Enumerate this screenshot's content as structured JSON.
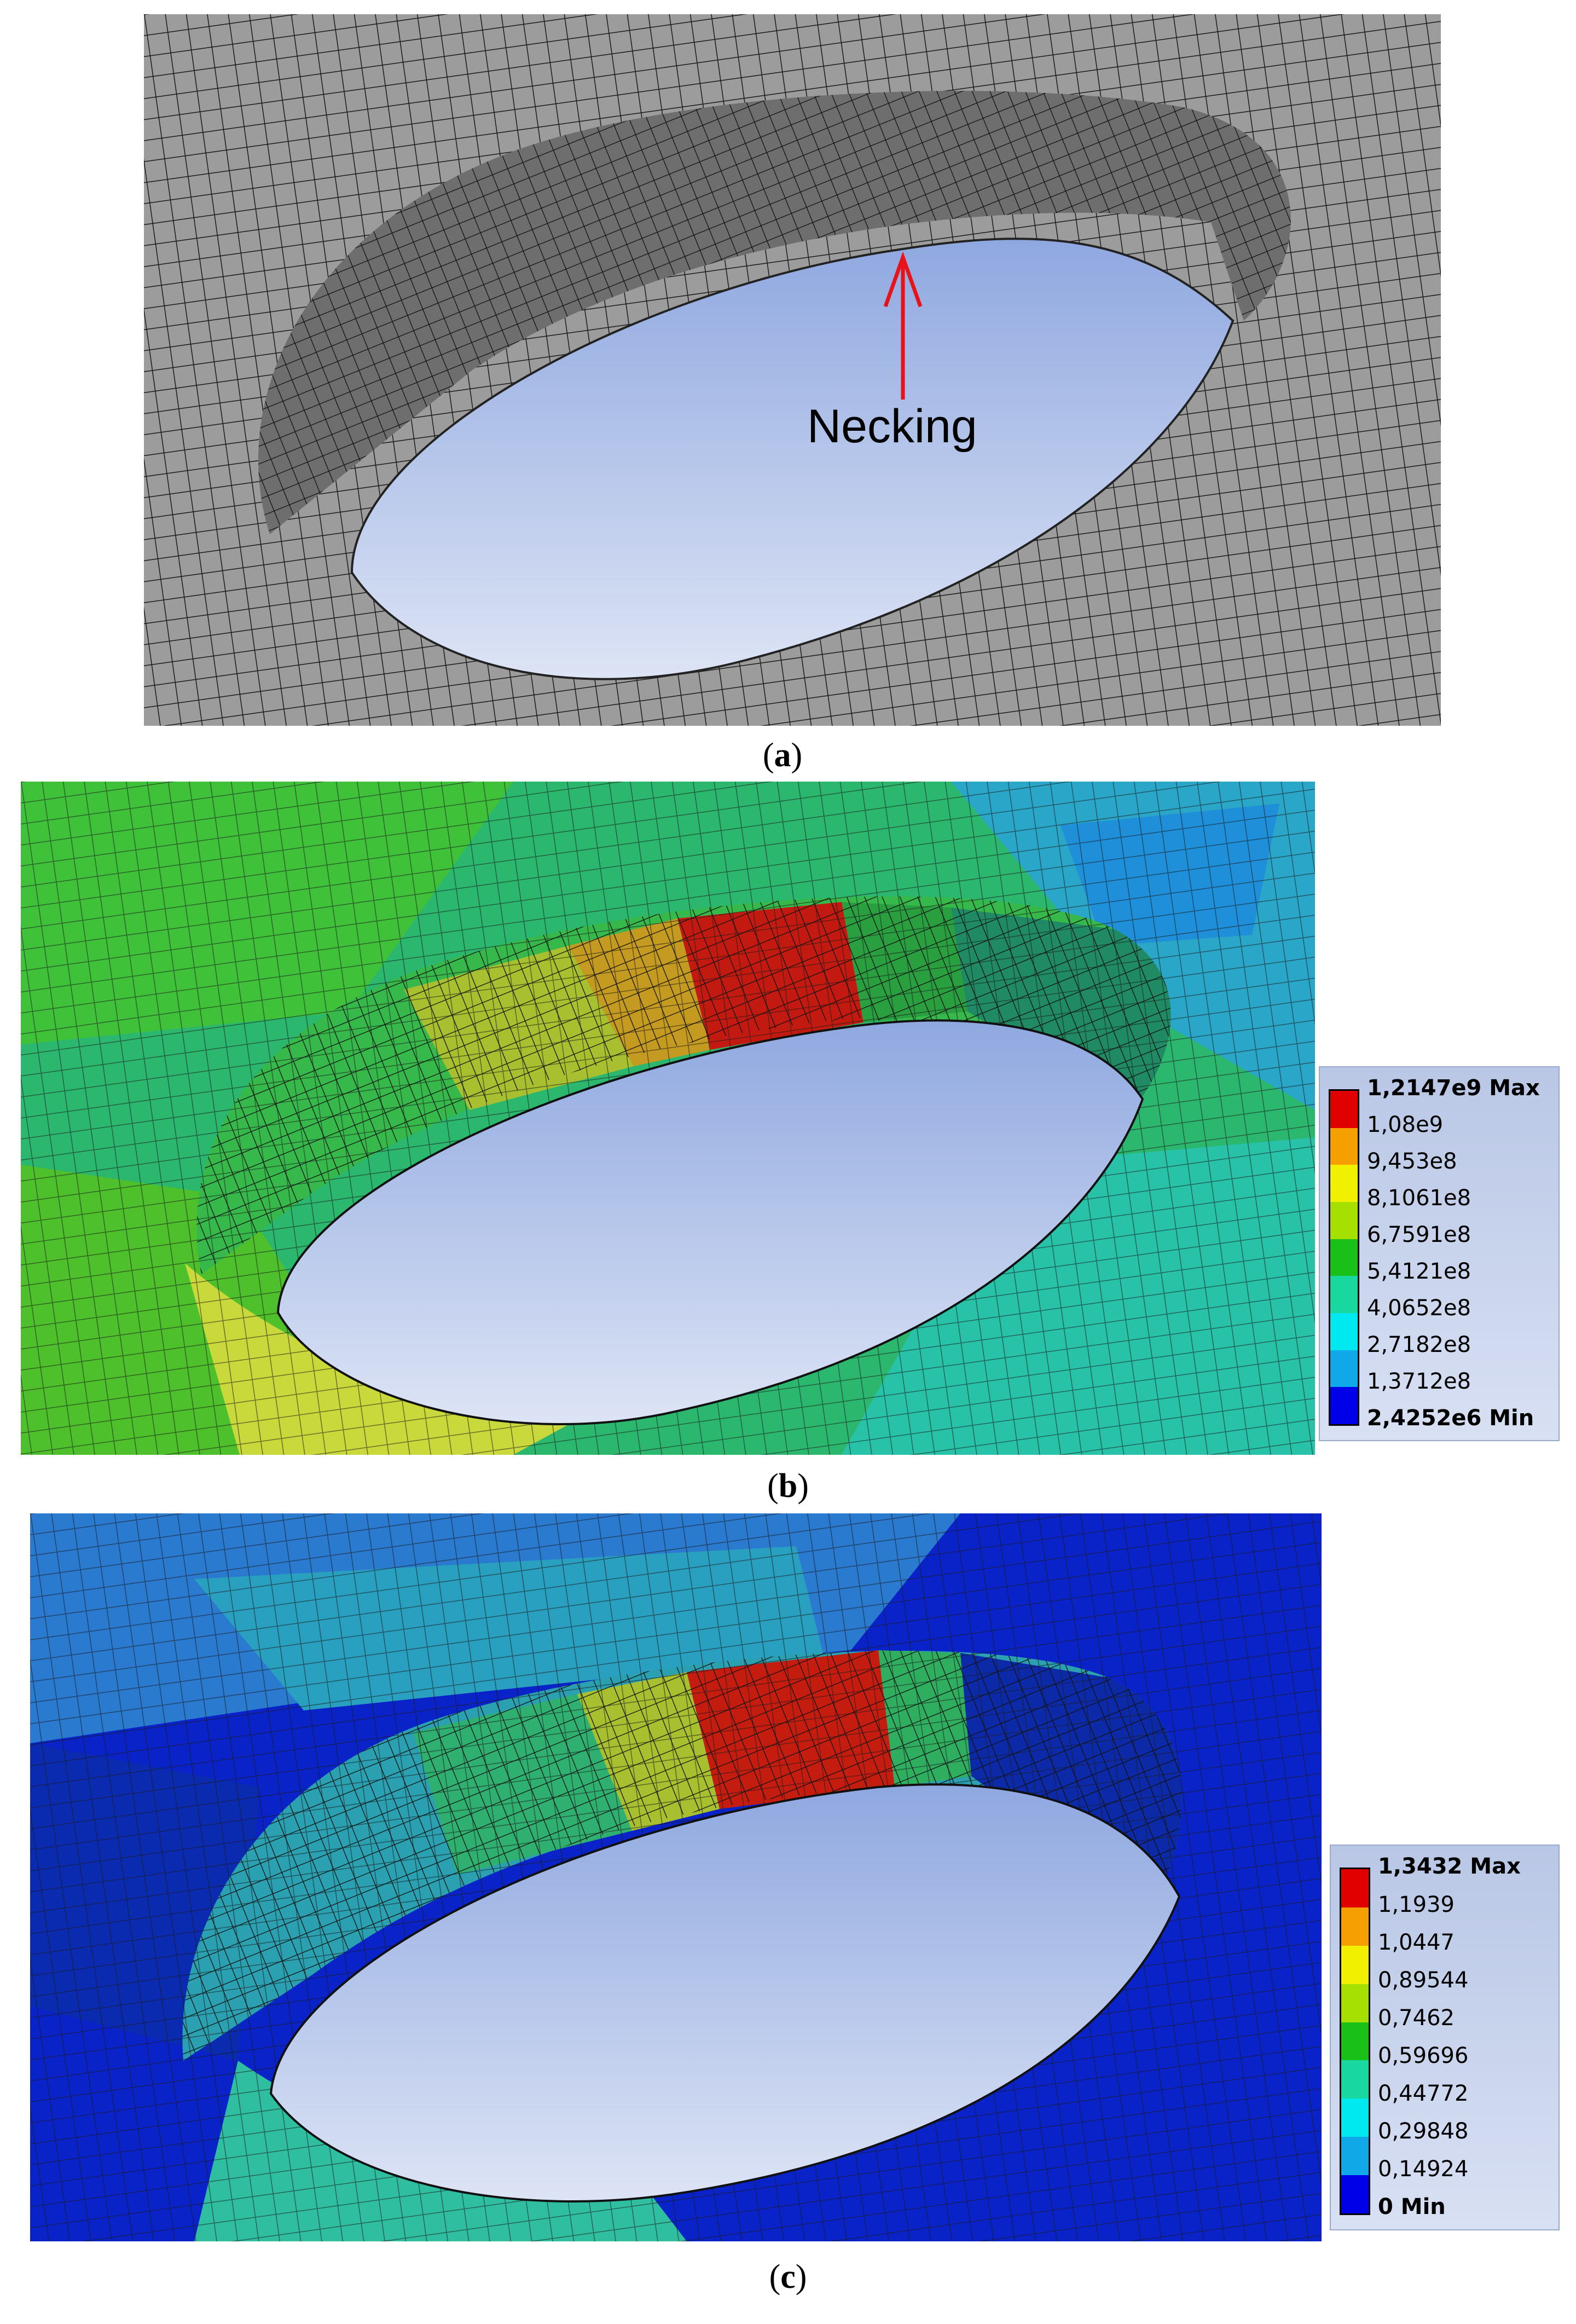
{
  "panels": {
    "a": {
      "caption": "a",
      "annotation": "Necking",
      "arrow_color": "#e8121b"
    },
    "b": {
      "caption": "b",
      "legend": {
        "max_label": "1,2147e9 Max",
        "min_label": "2,4252e6 Min",
        "ticks": [
          "1,08e9",
          "9,453e8",
          "8,1061e8",
          "6,7591e8",
          "5,4121e8",
          "4,0652e8",
          "2,7182e8",
          "1,3712e8"
        ],
        "colors": [
          "#e00000",
          "#f5a000",
          "#f0f000",
          "#a6e000",
          "#18c018",
          "#18d8a0",
          "#00e8f0",
          "#10a8e8",
          "#0000e8"
        ]
      }
    },
    "c": {
      "caption": "c",
      "legend": {
        "max_label": "1,3432 Max",
        "min_label": "0 Min",
        "ticks": [
          "1,1939",
          "1,0447",
          "0,89544",
          "0,7462",
          "0,59696",
          "0,44772",
          "0,29848",
          "0,14924"
        ],
        "colors": [
          "#e00000",
          "#f5a000",
          "#f0f000",
          "#a6e000",
          "#18c018",
          "#18d8a0",
          "#00e8f0",
          "#10a8e8",
          "#0000e8"
        ]
      }
    }
  },
  "caption_paren_open": "(",
  "caption_paren_close": ")"
}
